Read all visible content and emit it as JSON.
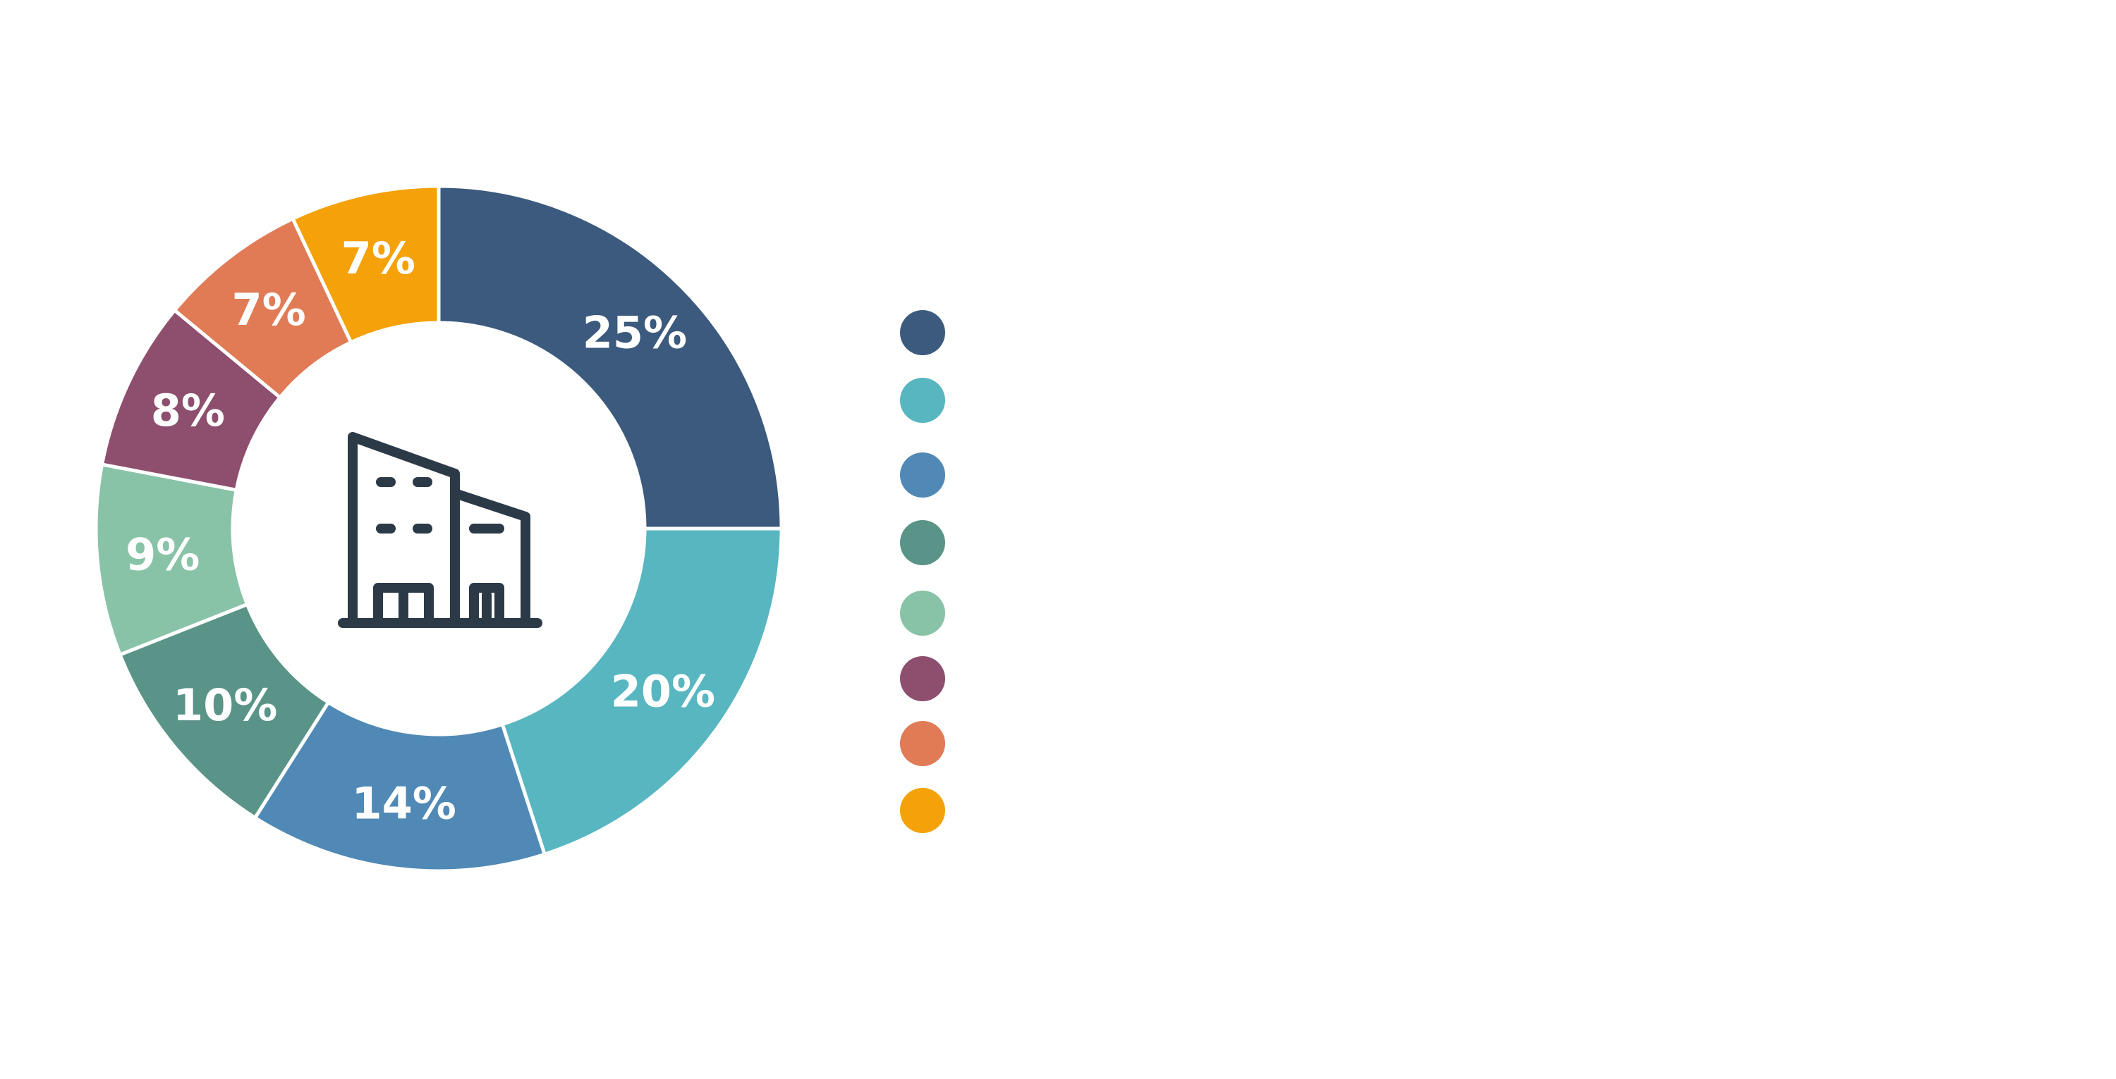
{
  "chart_data": {
    "type": "pie",
    "donut": true,
    "title": "",
    "slices": [
      {
        "label": "25%",
        "value": 25,
        "color": "#3b5a7d"
      },
      {
        "label": "20%",
        "value": 20,
        "color": "#58b6c0"
      },
      {
        "label": "14%",
        "value": 14,
        "color": "#5089b5"
      },
      {
        "label": "10%",
        "value": 10,
        "color": "#5a9488"
      },
      {
        "label": "9%",
        "value": 9,
        "color": "#89c3a7"
      },
      {
        "label": "8%",
        "value": 8,
        "color": "#8e4f6e"
      },
      {
        "label": "7%",
        "value": 7,
        "color": "#e07b56"
      },
      {
        "label": "7%",
        "value": 7,
        "color": "#f4a10a"
      }
    ],
    "legend": {
      "placement": "right"
    },
    "center_icon": "building-icon",
    "icon_color": "#2c3947"
  }
}
